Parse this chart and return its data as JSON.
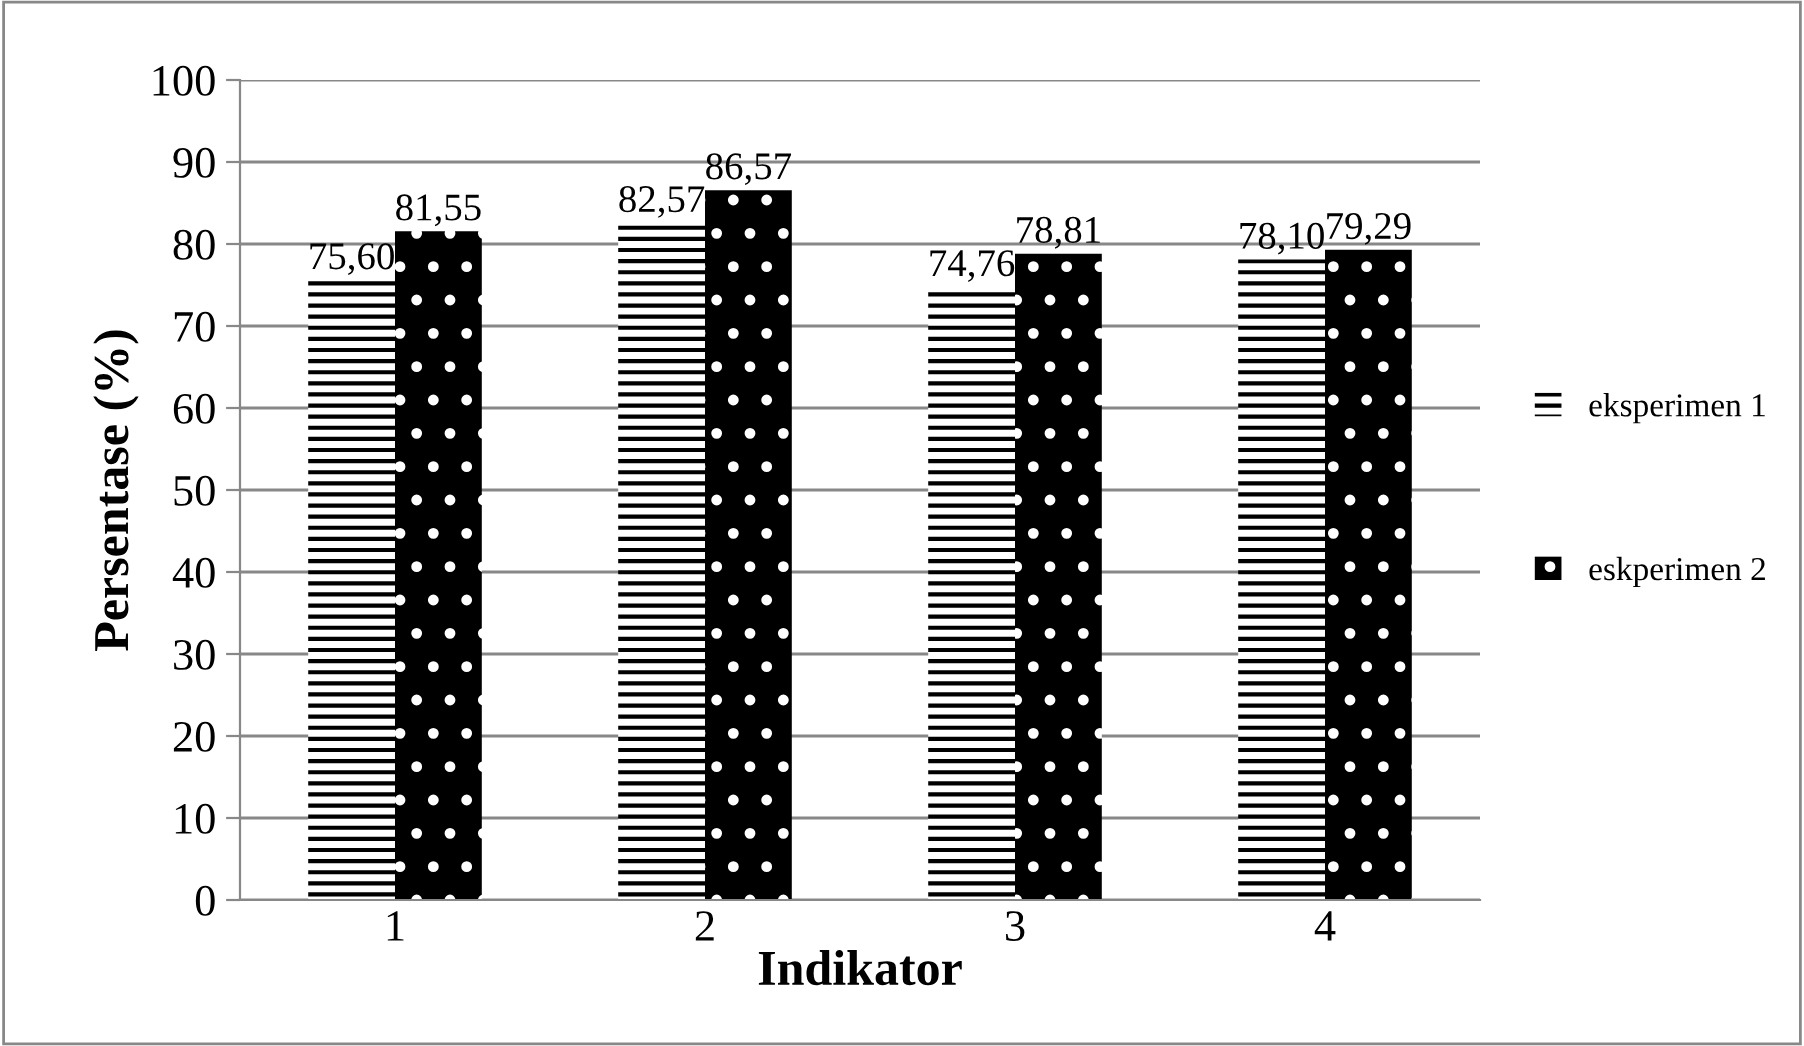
{
  "chart_data": {
    "type": "bar",
    "xlabel": "Indikator",
    "ylabel": "Persentase (%)",
    "categories": [
      "1",
      "2",
      "3",
      "4"
    ],
    "series": [
      {
        "name": "eksperimen 1",
        "color": "#000000",
        "values": [
          75.6,
          82.57,
          74.76,
          78.1
        ],
        "value_labels": [
          "75,60",
          "82,57",
          "74,76",
          "78,10"
        ]
      },
      {
        "name": "eskperimen 2",
        "color": "#000000",
        "values": [
          81.55,
          86.57,
          78.81,
          79.29
        ],
        "value_labels": [
          "81,55",
          "86,57",
          "78,81",
          "79,29"
        ]
      }
    ],
    "ylim": [
      0,
      100
    ],
    "yticks": [
      0,
      10,
      20,
      30,
      40,
      50,
      60,
      70,
      80,
      90,
      100
    ],
    "grid": "y",
    "legend": "right"
  }
}
